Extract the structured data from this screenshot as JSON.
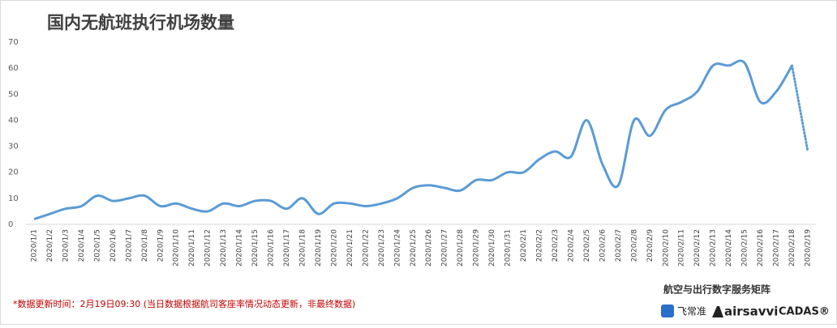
{
  "chart_data": {
    "type": "line",
    "title": "国内无航班执行机场数量",
    "categories": [
      "2020/1/1",
      "2020/1/2",
      "2020/1/3",
      "2020/1/4",
      "2020/1/5",
      "2020/1/6",
      "2020/1/7",
      "2020/1/8",
      "2020/1/9",
      "2020/1/10",
      "2020/1/11",
      "2020/1/12",
      "2020/1/13",
      "2020/1/14",
      "2020/1/15",
      "2020/1/16",
      "2020/1/17",
      "2020/1/18",
      "2020/1/19",
      "2020/1/20",
      "2020/1/21",
      "2020/1/22",
      "2020/1/23",
      "2020/1/24",
      "2020/1/25",
      "2020/1/26",
      "2020/1/27",
      "2020/1/28",
      "2020/1/29",
      "2020/1/30",
      "2020/1/31",
      "2020/2/1",
      "2020/2/2",
      "2020/2/3",
      "2020/2/4",
      "2020/2/5",
      "2020/2/6",
      "2020/2/7",
      "2020/2/8",
      "2020/2/9",
      "2020/2/10",
      "2020/2/11",
      "2020/2/12",
      "2020/2/13",
      "2020/2/14",
      "2020/2/15",
      "2020/2/16",
      "2020/2/17",
      "2020/2/18",
      "2020/2/19"
    ],
    "values": [
      2,
      4,
      6,
      7,
      11,
      9,
      10,
      11,
      7,
      8,
      6,
      5,
      8,
      7,
      9,
      9,
      6,
      10,
      4,
      8,
      8,
      7,
      8,
      10,
      14,
      15,
      14,
      13,
      17,
      17,
      20,
      20,
      25,
      28,
      26,
      40,
      23,
      15,
      40,
      34,
      44,
      47,
      51,
      61,
      61,
      62,
      47,
      51,
      61,
      28
    ],
    "color": "#5b9bd5",
    "smooth": true,
    "dotted_last_segment": true,
    "ylim": [
      0,
      70
    ],
    "yticks": [
      0,
      10,
      20,
      30,
      40,
      50,
      60,
      70
    ],
    "grid": false
  },
  "footer": {
    "note": "*数据更新时间：2月19日09:30 (当日数据根据航司客座率情况动态更新，非最终数据)",
    "brand_title": "航空与出行数字服务矩阵",
    "logos": [
      "飞常准",
      "airsavvi",
      "CADAS®"
    ]
  }
}
